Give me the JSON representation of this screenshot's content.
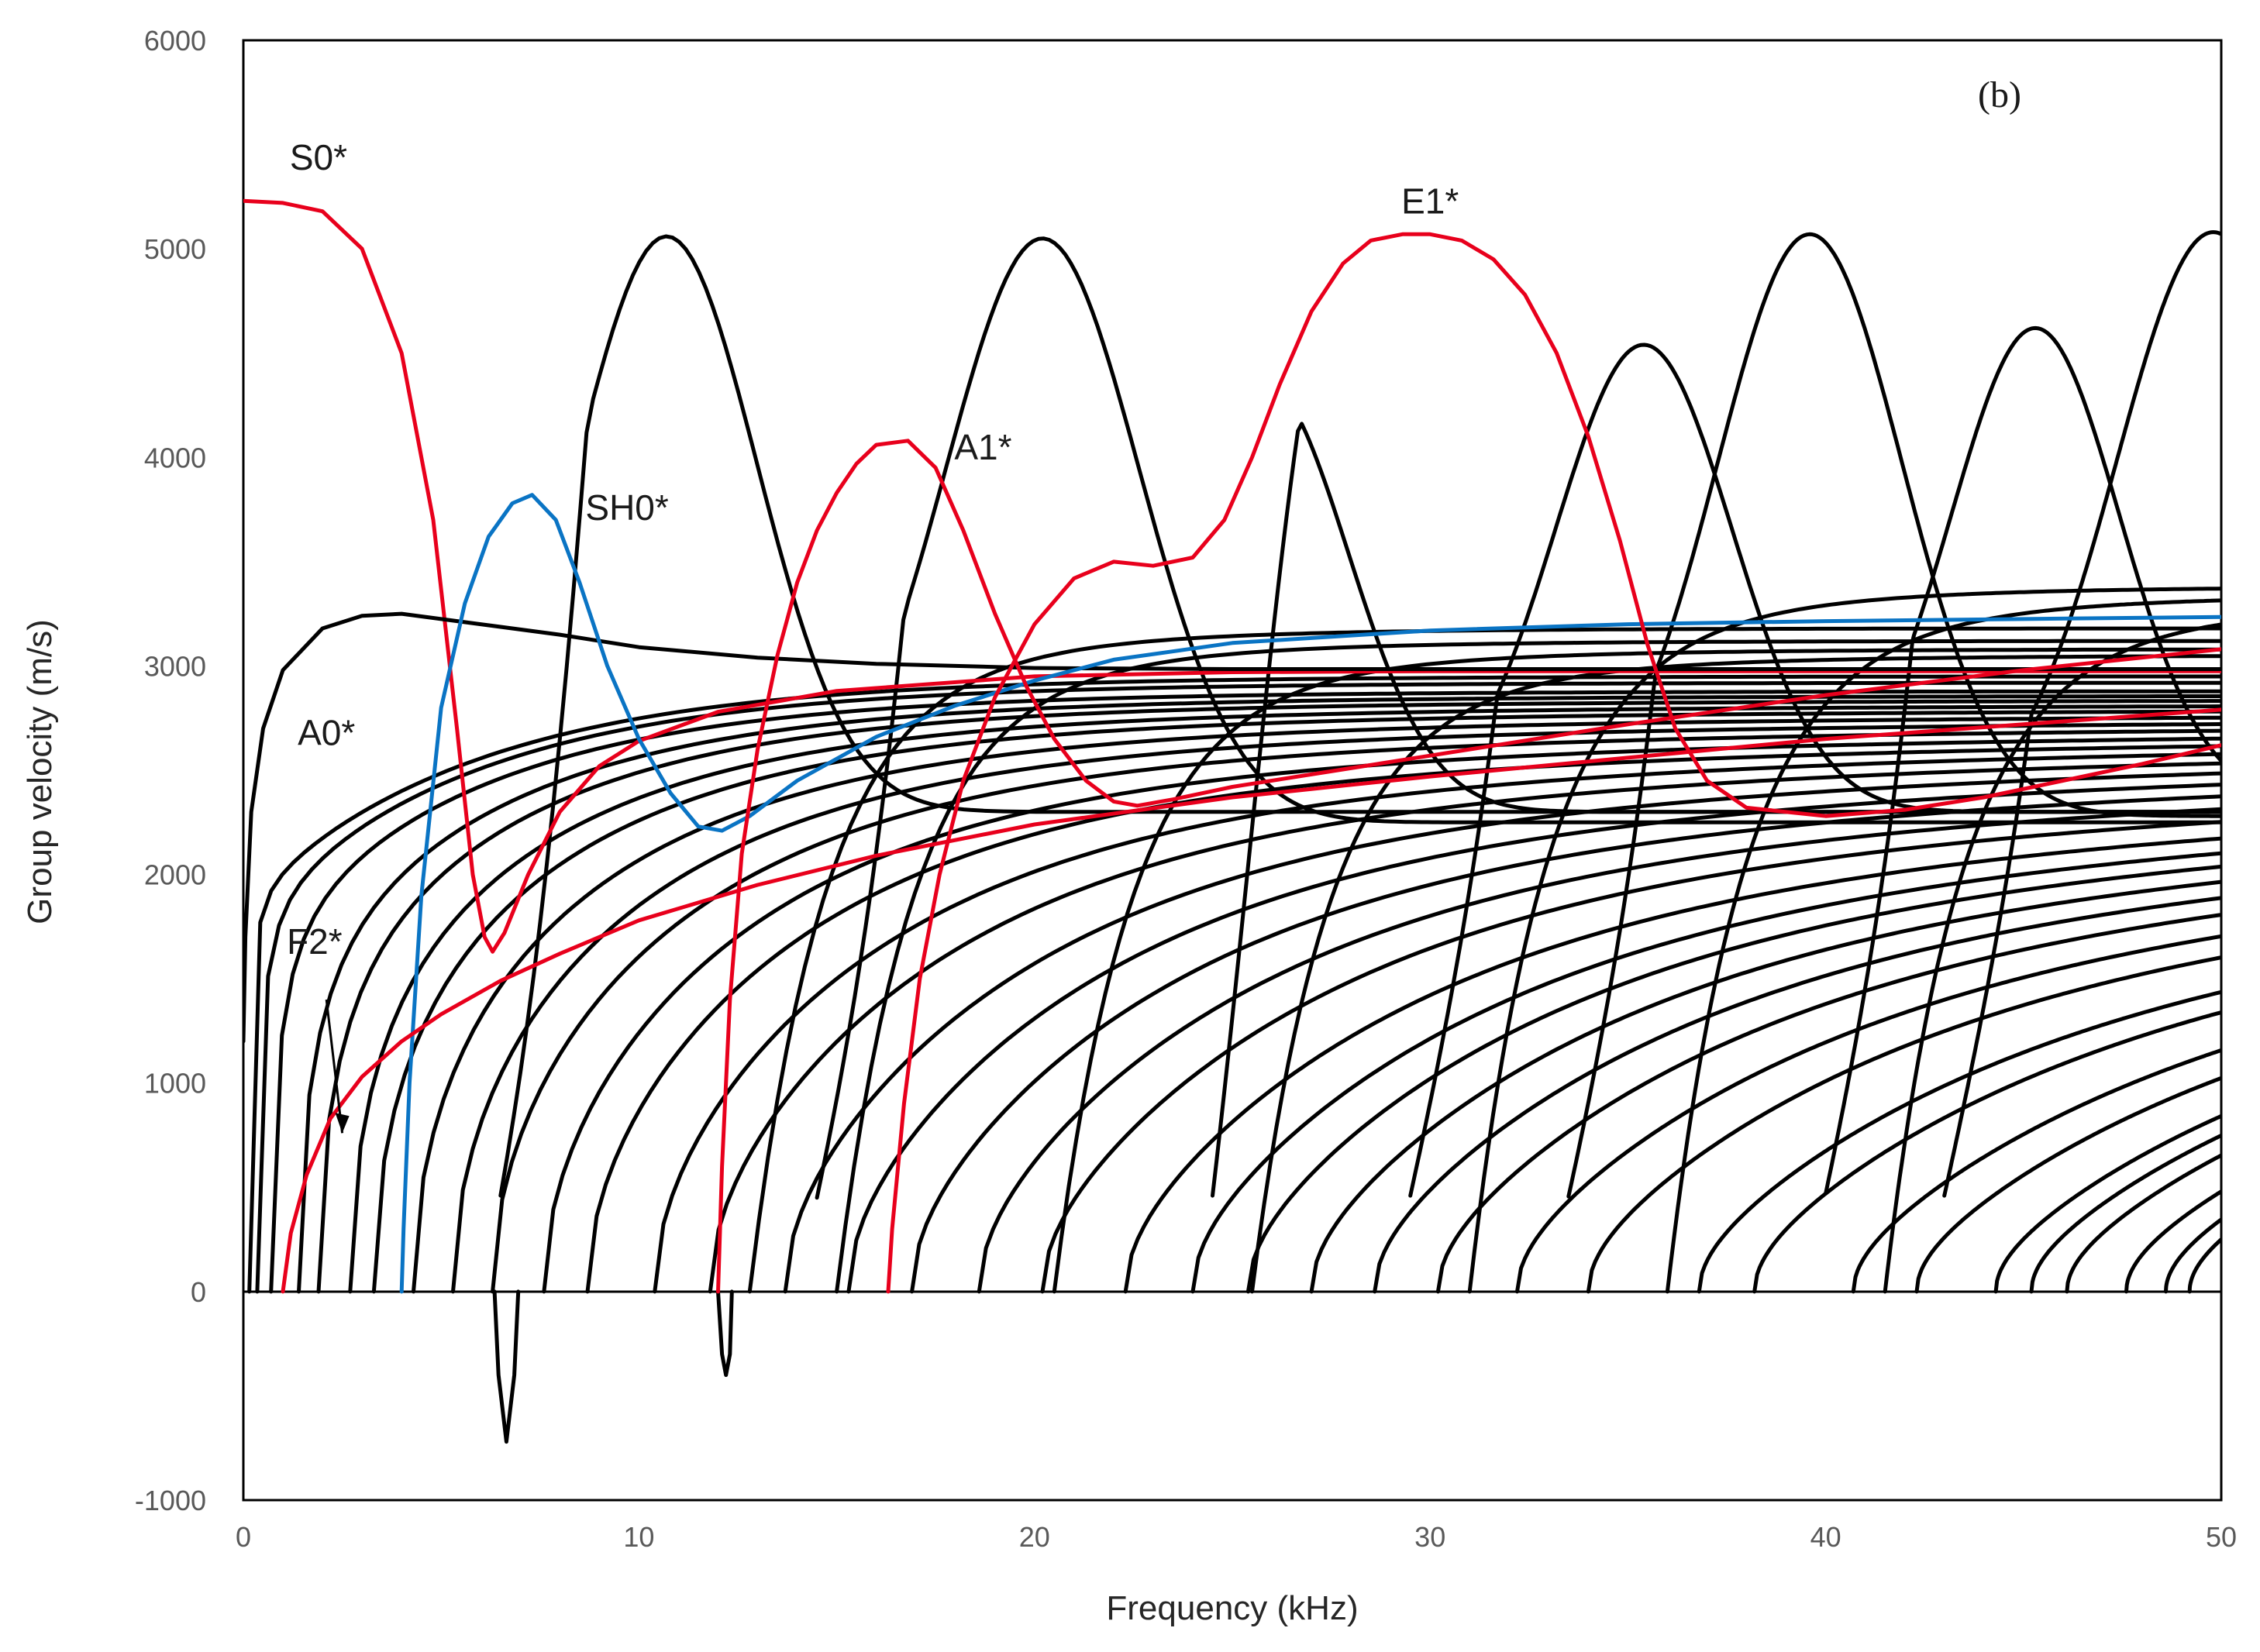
{
  "chart_data": {
    "type": "line",
    "title": "",
    "panel_label": "(b)",
    "xlabel": "Frequency (kHz)",
    "ylabel": "Group velocity (m/s)",
    "xlim": [
      0,
      50
    ],
    "ylim": [
      -1000,
      6000
    ],
    "xticks": [
      0,
      10,
      20,
      30,
      40,
      50
    ],
    "yticks": [
      -1000,
      0,
      1000,
      2000,
      3000,
      4000,
      5000,
      6000
    ],
    "grid": false,
    "colors": {
      "highlight_red": "#e8001c",
      "sh0_blue": "#0a74c4",
      "other_modes": "#000000"
    },
    "labeled_modes": [
      {
        "name": "S0*",
        "color": "#e8001c",
        "x": [
          0,
          1,
          2,
          3,
          4,
          4.8,
          5.4,
          5.8,
          6.1,
          6.3,
          6.6,
          7.2,
          8,
          9,
          10,
          12,
          15,
          20,
          25,
          30,
          40,
          50
        ],
        "y": [
          5230,
          5220,
          5180,
          5000,
          4500,
          3700,
          2700,
          2000,
          1700,
          1630,
          1720,
          2000,
          2300,
          2520,
          2640,
          2780,
          2880,
          2950,
          2970,
          2975,
          2975,
          2975
        ]
      },
      {
        "name": "A0*",
        "color": "#000000",
        "x": [
          0,
          0.05,
          0.2,
          0.5,
          1,
          2,
          3,
          4,
          6,
          8,
          10,
          13,
          16,
          20,
          25,
          30,
          40,
          50
        ],
        "y": [
          1200,
          1700,
          2300,
          2700,
          2980,
          3180,
          3240,
          3250,
          3200,
          3150,
          3090,
          3040,
          3010,
          2990,
          2985,
          2985,
          2985,
          2985
        ]
      },
      {
        "name": "SH0*",
        "color": "#0a74c4",
        "x": [
          4.0,
          4.05,
          4.2,
          4.5,
          5,
          5.6,
          6.2,
          6.8,
          7.3,
          7.9,
          8.5,
          9.2,
          10,
          10.8,
          11.5,
          12.1,
          12.8,
          14,
          16,
          18,
          20,
          22,
          25,
          30,
          35,
          40,
          45,
          50
        ],
        "y": [
          0,
          300,
          1000,
          1900,
          2800,
          3300,
          3620,
          3780,
          3820,
          3700,
          3400,
          3000,
          2650,
          2390,
          2230,
          2210,
          2280,
          2450,
          2660,
          2810,
          2930,
          3030,
          3110,
          3170,
          3200,
          3215,
          3225,
          3235
        ]
      },
      {
        "name": "A1*",
        "color": "#e8001c",
        "x": [
          12.0,
          12.1,
          12.3,
          12.6,
          13,
          13.5,
          14,
          14.5,
          15,
          15.5,
          16,
          16.8,
          17.5,
          18.2,
          19,
          19.8,
          20.5,
          21.3,
          22,
          22.6,
          23.5,
          25,
          27,
          30,
          35,
          40,
          45,
          50
        ],
        "y": [
          0,
          600,
          1400,
          2100,
          2600,
          3050,
          3400,
          3650,
          3830,
          3970,
          4060,
          4080,
          3950,
          3650,
          3250,
          2900,
          2650,
          2450,
          2350,
          2330,
          2360,
          2420,
          2480,
          2570,
          2720,
          2860,
          2980,
          3080
        ]
      },
      {
        "name": "E1*",
        "color": "#e8001c",
        "x": [
          16.3,
          16.4,
          16.7,
          17.1,
          17.6,
          18.2,
          19,
          20,
          21,
          22,
          23,
          24,
          24.8,
          25.5,
          26.2,
          27,
          27.8,
          28.5,
          29.3,
          30,
          30.8,
          31.6,
          32.4,
          33.2,
          34,
          34.8,
          35.5,
          36.2,
          37,
          38,
          40,
          42,
          44,
          46,
          48,
          50
        ],
        "y": [
          0,
          300,
          900,
          1500,
          2000,
          2450,
          2850,
          3200,
          3420,
          3500,
          3480,
          3520,
          3700,
          4000,
          4350,
          4700,
          4930,
          5040,
          5070,
          5070,
          5040,
          4950,
          4780,
          4500,
          4100,
          3600,
          3100,
          2700,
          2450,
          2320,
          2280,
          2310,
          2370,
          2450,
          2530,
          2620
        ]
      },
      {
        "name": "F2*",
        "color": "#e8001c",
        "x": [
          1.0,
          1.2,
          1.6,
          2.2,
          3,
          4,
          5,
          6.5,
          8,
          10,
          13,
          16,
          20,
          25,
          30,
          35,
          40,
          45,
          50
        ],
        "y": [
          0,
          280,
          560,
          830,
          1030,
          1200,
          1330,
          1490,
          1620,
          1780,
          1950,
          2090,
          2240,
          2370,
          2470,
          2560,
          2650,
          2720,
          2790
        ]
      }
    ],
    "annotations": [
      {
        "text": "S0*",
        "x": 1.9,
        "y": 5380
      },
      {
        "text": "A0*",
        "x": 2.1,
        "y": 2620
      },
      {
        "text": "SH0*",
        "x": 9.7,
        "y": 3700
      },
      {
        "text": "A1*",
        "x": 18.7,
        "y": 3990
      },
      {
        "text": "E1*",
        "x": 30.0,
        "y": 5170
      },
      {
        "text": "F2*",
        "x": 1.8,
        "y": 1620
      }
    ],
    "f2_arrow": {
      "from": [
        2.1,
        1400
      ],
      "to": [
        2.5,
        760
      ]
    },
    "other_modes_note": "dozens of additional unlabeled black higher-order modes"
  }
}
